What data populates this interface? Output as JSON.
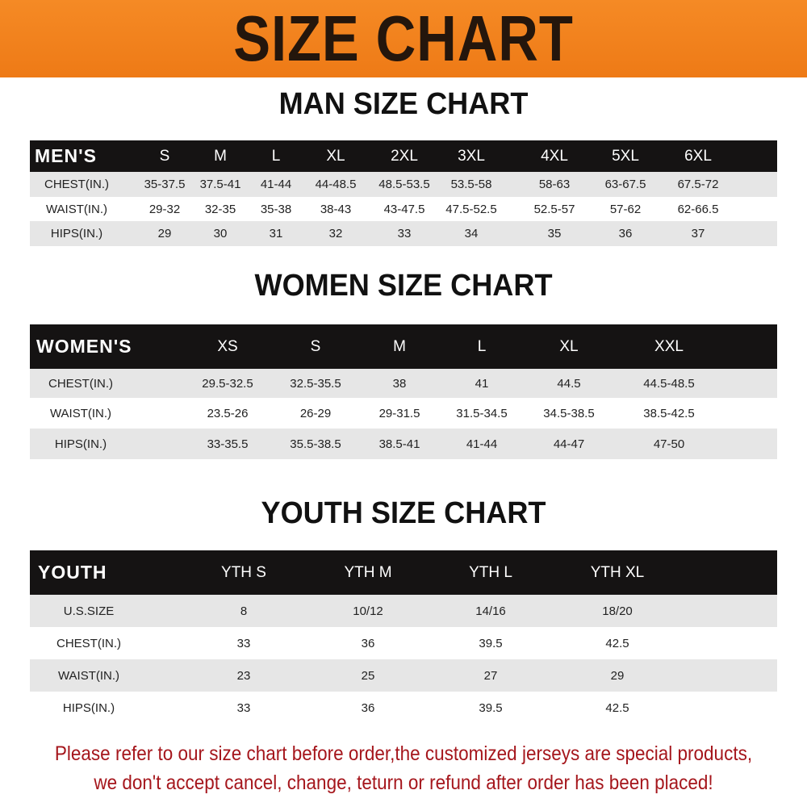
{
  "title": "SIZE CHART",
  "colors": {
    "banner": "#f07f1c",
    "table_header": "#151313",
    "row_shade": "#e6e6e6",
    "note": "#a5161c"
  },
  "men": {
    "title": "MAN SIZE CHART",
    "header": [
      "MEN'S",
      "S",
      "M",
      "L",
      "XL",
      "2XL",
      "3XL",
      "4XL",
      "5XL",
      "6XL"
    ],
    "rows": [
      [
        "CHEST(IN.)",
        "35-37.5",
        "37.5-41",
        "41-44",
        "44-48.5",
        "48.5-53.5",
        "53.5-58",
        "58-63",
        "63-67.5",
        "67.5-72"
      ],
      [
        "WAIST(IN.)",
        "29-32",
        "32-35",
        "35-38",
        "38-43",
        "43-47.5",
        "47.5-52.5",
        "52.5-57",
        "57-62",
        "62-66.5"
      ],
      [
        "HIPS(IN.)",
        "29",
        "30",
        "31",
        "32",
        "33",
        "34",
        "35",
        "36",
        "37"
      ]
    ]
  },
  "women": {
    "title": "WOMEN SIZE CHART",
    "header": [
      "WOMEN'S",
      "XS",
      "S",
      "M",
      "L",
      "XL",
      "XXL"
    ],
    "rows": [
      [
        "CHEST(IN.)",
        "29.5-32.5",
        "32.5-35.5",
        "38",
        "41",
        "44.5",
        "44.5-48.5"
      ],
      [
        "WAIST(IN.)",
        "23.5-26",
        "26-29",
        "29-31.5",
        "31.5-34.5",
        "34.5-38.5",
        "38.5-42.5"
      ],
      [
        "HIPS(IN.)",
        "33-35.5",
        "35.5-38.5",
        "38.5-41",
        "41-44",
        "44-47",
        "47-50"
      ]
    ]
  },
  "youth": {
    "title": "YOUTH SIZE CHART",
    "header": [
      "YOUTH",
      "YTH S",
      "YTH M",
      "YTH L",
      "YTH XL"
    ],
    "rows": [
      [
        "U.S.SIZE",
        "8",
        "10/12",
        "14/16",
        "18/20"
      ],
      [
        "CHEST(IN.)",
        "33",
        "36",
        "39.5",
        "42.5"
      ],
      [
        "WAIST(IN.)",
        "23",
        "25",
        "27",
        "29"
      ],
      [
        "HIPS(IN.)",
        "33",
        "36",
        "39.5",
        "42.5"
      ]
    ]
  },
  "note": {
    "line1": "Please refer to our size chart before order,the customized jerseys are special products,",
    "line2": "we don't accept cancel, change, teturn or refund after order has been placed!"
  }
}
